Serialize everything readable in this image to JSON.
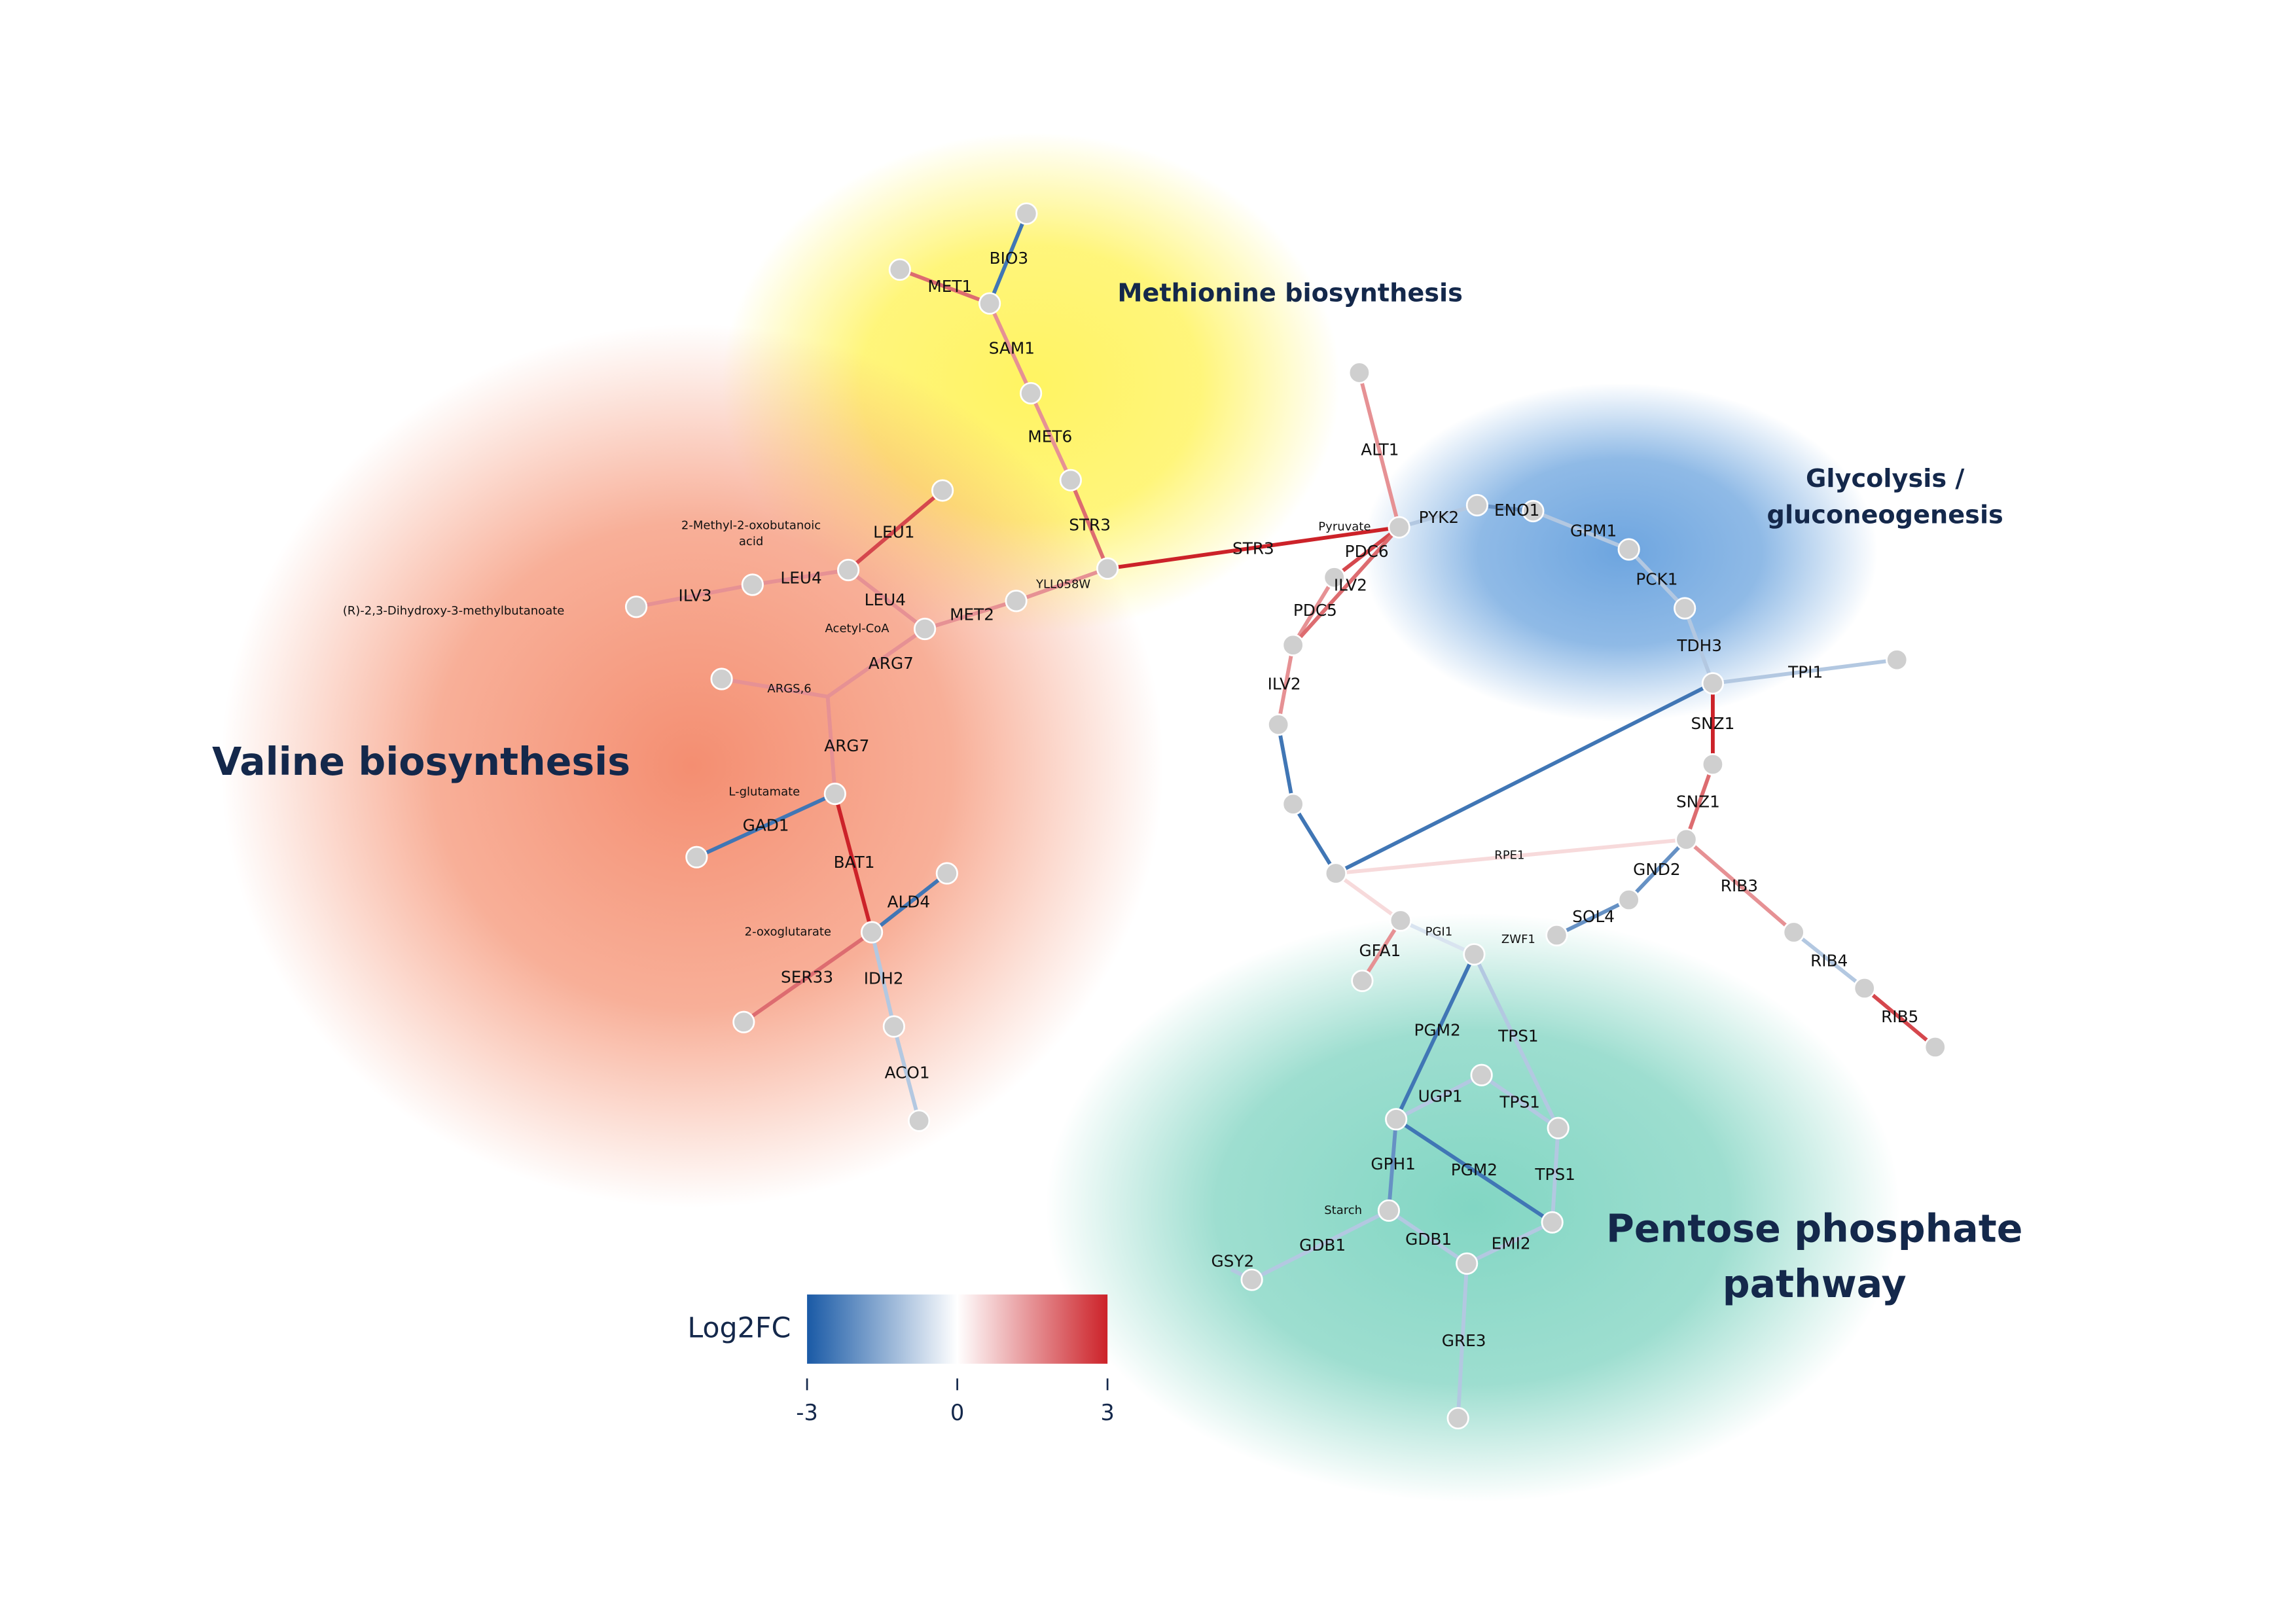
{
  "regions": [
    {
      "lines": [
        "Methionine biosynthesis"
      ]
    },
    {
      "lines": [
        "Valine biosynthesis"
      ]
    },
    {
      "lines": [
        "Glycolysis /",
        "gluconeogenesis"
      ]
    },
    {
      "lines": [
        "Pentose phosphate",
        "pathway"
      ]
    }
  ],
  "edges": [
    {
      "label": "BIO3",
      "log2fc": -2.5
    },
    {
      "label": "MET1",
      "log2fc": 2
    },
    {
      "label": "SAM1",
      "log2fc": 1.5
    },
    {
      "label": "MET6",
      "log2fc": 1.5
    },
    {
      "label": "STR3",
      "log2fc": 2
    },
    {
      "label": "LEU1",
      "log2fc": 2.5
    },
    {
      "label": "LEU4",
      "log2fc": 1.5
    },
    {
      "label": "ILV3",
      "log2fc": 1.5
    },
    {
      "label": "LEU4",
      "log2fc": 1.5
    },
    {
      "label": "MET2",
      "log2fc": 1.5
    },
    {
      "label": "YLL058W",
      "log2fc": 1.5
    },
    {
      "label": "ARG7",
      "log2fc": 1.5
    },
    {
      "label": "ARGS,6",
      "log2fc": 1.5
    },
    {
      "label": "ARG7",
      "log2fc": 1.5
    },
    {
      "label": "GAD1",
      "log2fc": -2.5
    },
    {
      "label": "BAT1",
      "log2fc": 3
    },
    {
      "label": "ALD4",
      "log2fc": -2.5
    },
    {
      "label": "SER33",
      "log2fc": 2
    },
    {
      "label": "IDH2",
      "log2fc": -1
    },
    {
      "label": "ACO1",
      "log2fc": -1
    },
    {
      "label": "STR3",
      "log2fc": 3
    },
    {
      "label": "ALT1",
      "log2fc": 1.5
    },
    {
      "label": "PDC6",
      "log2fc": 2.5
    },
    {
      "label": "ILV2",
      "log2fc": 1.5
    },
    {
      "label": "PDC5",
      "log2fc": 2
    },
    {
      "label": "ILV2",
      "log2fc": 1.5
    },
    {
      "label": null,
      "log2fc": -2.5
    },
    {
      "label": null,
      "log2fc": -2.5
    },
    {
      "label": "PYK2",
      "log2fc": -1
    },
    {
      "label": "ENO1",
      "log2fc": -2
    },
    {
      "label": "GPM1",
      "log2fc": -1
    },
    {
      "label": "PCK1",
      "log2fc": -1
    },
    {
      "label": "TDH3",
      "log2fc": -1
    },
    {
      "label": "TPI1",
      "log2fc": -1
    },
    {
      "label": "SNZ1",
      "log2fc": 3
    },
    {
      "label": "SNZ1",
      "log2fc": 2
    },
    {
      "label": null,
      "log2fc": -2.5
    },
    {
      "label": "RPE1",
      "log2fc": 0.5
    },
    {
      "label": "GND2",
      "log2fc": -2
    },
    {
      "label": "SOL4",
      "log2fc": -2
    },
    {
      "label": "RIB3",
      "log2fc": 1.5
    },
    {
      "label": "RIB4",
      "log2fc": -1
    },
    {
      "label": "RIB5",
      "log2fc": 2.5
    },
    {
      "label": "GFA1",
      "log2fc": 1.5
    },
    {
      "label": null,
      "log2fc": 0.5
    },
    {
      "label": "PGI1",
      "log2fc": -0.5
    },
    {
      "label": "PGM2",
      "log2fc": -2.5
    },
    {
      "label": "TPS1",
      "log2fc": -1
    },
    {
      "label": "TPS1",
      "log2fc": -1
    },
    {
      "label": "UGP1",
      "log2fc": -1
    },
    {
      "label": "GPH1",
      "log2fc": -2
    },
    {
      "label": "PGM2",
      "log2fc": -2.5
    },
    {
      "label": "TPS1",
      "log2fc": -1
    },
    {
      "label": "GDB1",
      "log2fc": -1
    },
    {
      "label": "GDB1",
      "log2fc": -1
    },
    {
      "label": "EMI2",
      "log2fc": -1
    },
    {
      "label": "GRE3",
      "log2fc": -1
    },
    {
      "label": "GSY2",
      "log2fc": -1
    },
    {
      "label": "ZWF1",
      "log2fc": -1
    }
  ],
  "metabolites": [
    [
      "2-Methyl-2-oxobutanoic",
      "acid"
    ],
    [
      "(R)-2,3-Dihydroxy-3-methylbutanoate"
    ],
    [
      "Acetyl-CoA"
    ],
    [
      "L-glutamate"
    ],
    [
      "2-oxoglutarate"
    ],
    [
      "Pyruvate"
    ],
    [
      "Starch"
    ]
  ],
  "legend": {
    "title": "Log2FC",
    "lim": [
      -3,
      3
    ],
    "ticks": [
      -3,
      0,
      3
    ],
    "colors": [
      "#1a5aa6",
      "#ffffff",
      "#cc2229"
    ]
  }
}
